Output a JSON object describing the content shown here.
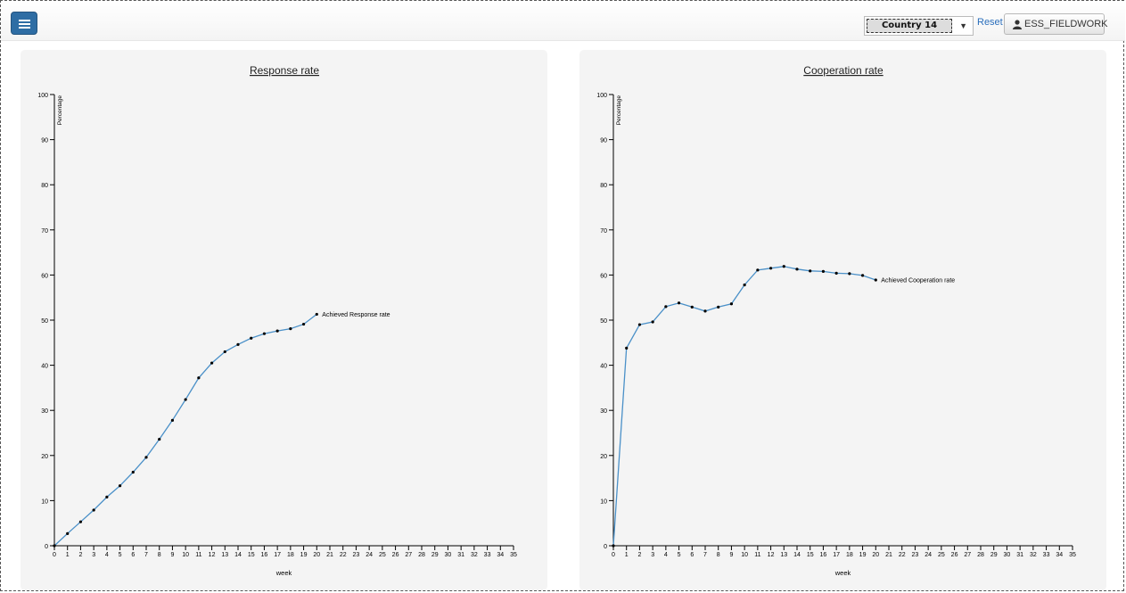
{
  "header": {
    "menu_icon": "hamburger-icon",
    "country_selected": "Country 14",
    "reset_label": "Reset",
    "user_label": "ESS_FIELDWORK",
    "user_icon": "user-icon",
    "accent_color": "#2e6da4"
  },
  "chart_data": [
    {
      "type": "line",
      "title": "Response rate",
      "xlabel": "week",
      "ylabel": "Percentage",
      "xlim": [
        0,
        35
      ],
      "ylim": [
        0,
        100
      ],
      "x_ticks": [
        0,
        1,
        2,
        3,
        4,
        5,
        6,
        7,
        8,
        9,
        10,
        11,
        12,
        13,
        14,
        15,
        16,
        17,
        18,
        19,
        20,
        21,
        22,
        23,
        24,
        25,
        26,
        27,
        28,
        29,
        30,
        31,
        32,
        33,
        34,
        35
      ],
      "y_ticks": [
        0,
        10,
        20,
        30,
        40,
        50,
        60,
        70,
        80,
        90,
        100
      ],
      "line_color": "#4a90c8",
      "series": [
        {
          "x": [
            0,
            1,
            2,
            3,
            4,
            5,
            6,
            7,
            8,
            9,
            10,
            11,
            12,
            13,
            14,
            15,
            16,
            17,
            18,
            19,
            20
          ],
          "values": [
            0,
            2.7,
            5.3,
            7.9,
            10.8,
            13.3,
            16.3,
            19.6,
            23.6,
            27.8,
            32.4,
            37.2,
            40.5,
            43.0,
            44.6,
            46.0,
            47.0,
            47.6,
            48.1,
            49.1,
            51.3
          ]
        }
      ],
      "annotation": "Achieved Response rate"
    },
    {
      "type": "line",
      "title": "Cooperation rate",
      "xlabel": "week",
      "ylabel": "Percentage",
      "xlim": [
        0,
        35
      ],
      "ylim": [
        0,
        100
      ],
      "x_ticks": [
        0,
        1,
        2,
        3,
        4,
        5,
        6,
        7,
        8,
        9,
        10,
        11,
        12,
        13,
        14,
        15,
        16,
        17,
        18,
        19,
        20,
        21,
        22,
        23,
        24,
        25,
        26,
        27,
        28,
        29,
        30,
        31,
        32,
        33,
        34,
        35
      ],
      "y_ticks": [
        0,
        10,
        20,
        30,
        40,
        50,
        60,
        70,
        80,
        90,
        100
      ],
      "line_color": "#4a90c8",
      "series": [
        {
          "x": [
            0,
            1,
            2,
            3,
            4,
            5,
            6,
            7,
            8,
            9,
            10,
            11,
            12,
            13,
            14,
            15,
            16,
            17,
            18,
            19,
            20
          ],
          "values": [
            0,
            43.8,
            49.0,
            49.6,
            53.0,
            53.8,
            52.9,
            52.0,
            52.9,
            53.6,
            57.8,
            61.1,
            61.5,
            61.9,
            61.3,
            60.9,
            60.8,
            60.4,
            60.3,
            59.9,
            58.9
          ]
        }
      ],
      "annotation": "Achieved Cooperation rate"
    }
  ]
}
